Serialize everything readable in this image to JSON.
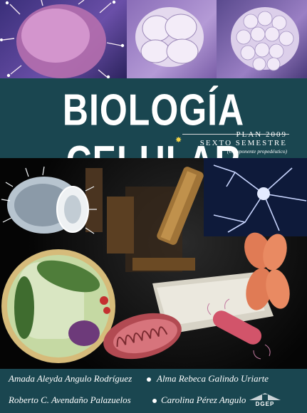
{
  "cover": {
    "title": "BIOLOGÍA CELULAR",
    "plan": "PLAN 2009",
    "semester": "SEXTO SEMESTRE",
    "component": "(Componente propedéutico)"
  },
  "authors": [
    "Amada Aleyda Angulo Rodríguez",
    "Alma Rebeca Galindo Uriarte",
    "Roberto C. Avendaño Palazuelos",
    "Carolina Pérez Angulo"
  ],
  "logo": {
    "text": "DGEP"
  },
  "colors": {
    "band": "#1a4650",
    "accent": "#f3d34a"
  }
}
